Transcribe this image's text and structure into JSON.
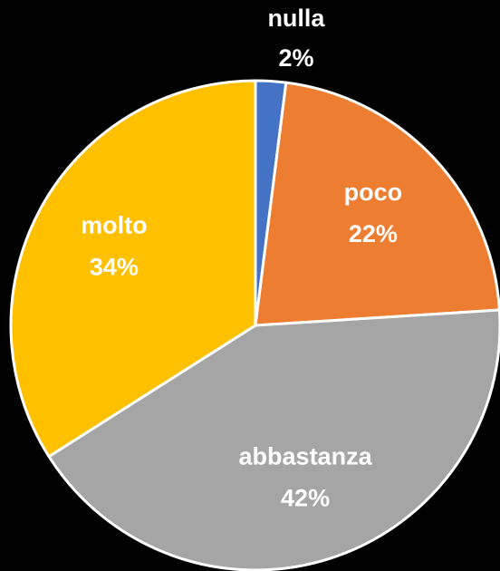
{
  "chart_data": {
    "type": "pie",
    "categories": [
      "nulla",
      "poco",
      "abbastanza",
      "molto"
    ],
    "values": [
      2,
      22,
      42,
      34
    ],
    "value_labels": [
      "2%",
      "22%",
      "42%",
      "34%"
    ],
    "colors": [
      "#4472c4",
      "#ed7d31",
      "#a5a5a5",
      "#ffc000"
    ]
  }
}
